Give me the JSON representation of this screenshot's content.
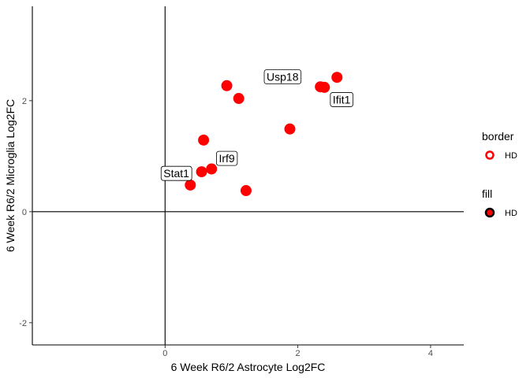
{
  "chart_data": {
    "type": "scatter",
    "xlabel": "6 Week R6/2 Astrocyte Log2FC",
    "ylabel": "6 Week R6/2 Microglia Log2FC",
    "xlim": [
      -2.0,
      4.5
    ],
    "ylim": [
      -2.4,
      3.7
    ],
    "x_ticks": [
      0,
      2,
      4
    ],
    "y_ticks": [
      -2,
      0,
      2
    ],
    "x_tick_labels": [
      "0",
      "2",
      "4"
    ],
    "y_tick_labels": [
      "-2",
      "0",
      "2"
    ],
    "reference_lines": {
      "x": 0,
      "y": 0
    },
    "grid": false,
    "point_color": "#FF0000",
    "points": [
      {
        "x": 0.38,
        "y": 0.48
      },
      {
        "x": 0.55,
        "y": 0.72
      },
      {
        "x": 0.7,
        "y": 0.77
      },
      {
        "x": 0.58,
        "y": 1.29
      },
      {
        "x": 0.93,
        "y": 2.27
      },
      {
        "x": 1.11,
        "y": 2.04
      },
      {
        "x": 1.22,
        "y": 0.38
      },
      {
        "x": 1.88,
        "y": 1.49
      },
      {
        "x": 2.34,
        "y": 2.25
      },
      {
        "x": 2.4,
        "y": 2.24
      },
      {
        "x": 2.59,
        "y": 2.42
      }
    ],
    "labels": [
      {
        "text": "Usp18",
        "x": 1.77,
        "y": 2.43
      },
      {
        "text": "Ifit1",
        "x": 2.66,
        "y": 2.02
      },
      {
        "text": "Irf9",
        "x": 0.93,
        "y": 0.96
      },
      {
        "text": "Stat1",
        "x": 0.17,
        "y": 0.69
      }
    ],
    "legend": {
      "placement": "right",
      "groups": [
        {
          "title": "border",
          "key": "HD",
          "style": "ring",
          "color": "#FF0000"
        },
        {
          "title": "fill",
          "key": "HD",
          "style": "filled",
          "color": "#FF0000",
          "outline": "#000000"
        }
      ]
    }
  }
}
